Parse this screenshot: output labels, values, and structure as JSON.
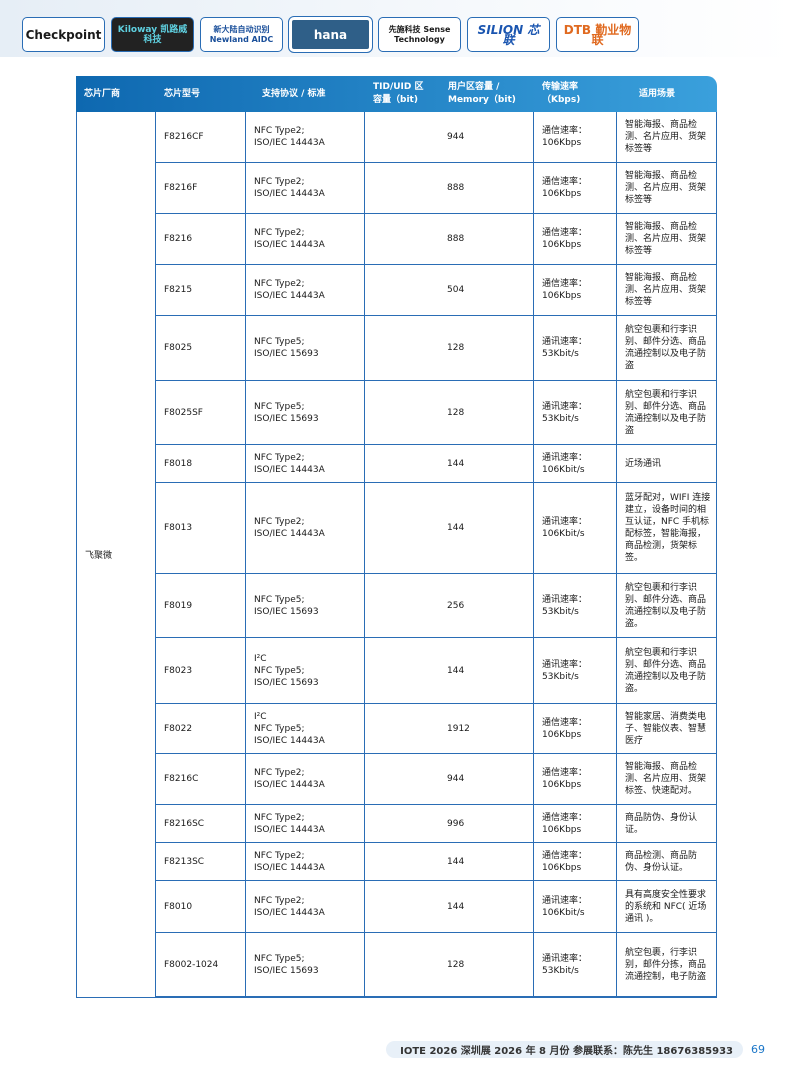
{
  "logos": [
    "Checkpoint",
    "Kiloway 凯路威科技",
    "新大陆自动识别 Newland AIDC",
    "hana",
    "先施科技 Sense Technology",
    "SILION 芯联",
    "DTB 勤业物联"
  ],
  "header": [
    "芯片厂商",
    "芯片型号",
    "支持协议 / 标准",
    "TID/UID 区\n容量（bit)",
    "用户区容量 /\nMemory（bit)",
    "传输速率\n（Kbps)",
    "适用场景"
  ],
  "vendor": "飞聚微",
  "rows": [
    {
      "model": "F8216CF",
      "protocol": "NFC Type2;\nISO/IEC 14443A",
      "memory": "944",
      "rate": "通信速率：\n106Kbps",
      "scenario": "智能海报、商品检测、名片应用、货架标签等"
    },
    {
      "model": "F8216F",
      "protocol": "NFC Type2;\nISO/IEC 14443A",
      "memory": "888",
      "rate": "通信速率：\n106Kbps",
      "scenario": "智能海报、商品检测、名片应用、货架标签等"
    },
    {
      "model": "F8216",
      "protocol": "NFC Type2;\nISO/IEC 14443A",
      "memory": "888",
      "rate": "通信速率：\n106Kbps",
      "scenario": "智能海报、商品检测、名片应用、货架标签等"
    },
    {
      "model": "F8215",
      "protocol": "NFC Type2;\nISO/IEC 14443A",
      "memory": "504",
      "rate": "通信速率：\n106Kbps",
      "scenario": "智能海报、商品检测、名片应用、货架标签等"
    },
    {
      "model": "F8025",
      "protocol": "NFC Type5;\nISO/IEC 15693",
      "memory": "128",
      "rate": "通讯速率：\n53Kbit/s",
      "scenario": "航空包裹和行李识别、邮件分选、商品流通控制以及电子防盗"
    },
    {
      "model": "F8025SF",
      "protocol": "NFC Type5;\nISO/IEC 15693",
      "memory": "128",
      "rate": "通讯速率：\n53Kbit/s",
      "scenario": "航空包裹和行李识别、邮件分选、商品流通控制以及电子防盗"
    },
    {
      "model": "F8018",
      "protocol": "NFC Type2;\nISO/IEC 14443A",
      "memory": "144",
      "rate": "通讯速率：\n106Kbit/s",
      "scenario": "近场通讯"
    },
    {
      "model": "F8013",
      "protocol": "NFC Type2;\nISO/IEC 14443A",
      "memory": "144",
      "rate": "通讯速率：\n106Kbit/s",
      "scenario": "蓝牙配对，WIFI 连接建立，设备时间的相互认证，NFC 手机标配标签，智能海报，商品检测，货架标签。"
    },
    {
      "model": "F8019",
      "protocol": "NFC Type5;\nISO/IEC 15693",
      "memory": "256",
      "rate": "通讯速率：\n53Kbit/s",
      "scenario": "航空包裹和行李识别、邮件分选、商品流通控制以及电子防盗。"
    },
    {
      "model": "F8023",
      "protocol": "I²C\nNFC Type5;\nISO/IEC 15693",
      "memory": "144",
      "rate": "通讯速率：\n53Kbit/s",
      "scenario": "航空包裹和行李识别、邮件分选、商品流通控制以及电子防盗。"
    },
    {
      "model": "F8022",
      "protocol": "I²C\nNFC Type5;\nISO/IEC 14443A",
      "memory": "1912",
      "rate": "通信速率：\n106Kbps",
      "scenario": "智能家居、消费类电子、智能仪表、智慧医疗"
    },
    {
      "model": "F8216C",
      "protocol": "NFC Type2;\nISO/IEC 14443A",
      "memory": "944",
      "rate": "通信速率：\n106Kbps",
      "scenario": "智能海报、商品检测、名片应用、货架标签、快速配对。"
    },
    {
      "model": "F8216SC",
      "protocol": "NFC Type2;\nISO/IEC 14443A",
      "memory": "996",
      "rate": "通信速率：\n106Kbps",
      "scenario": "商品防伪、身份认证。"
    },
    {
      "model": "F8213SC",
      "protocol": "NFC Type2;\nISO/IEC 14443A",
      "memory": "144",
      "rate": "通信速率：\n106Kbps",
      "scenario": "商品检测、商品防伪、身份认证。"
    },
    {
      "model": "F8010",
      "protocol": "NFC Type2;\nISO/IEC 14443A",
      "memory": "144",
      "rate": "通讯速率：\n106Kbit/s",
      "scenario": "具有高度安全性要求的系统和 NFC( 近场通讯 )。"
    },
    {
      "model": "F8002-1024",
      "protocol": "NFC Type5;\nISO/IEC 15693",
      "memory": "128",
      "rate": "通讯速率：\n53Kbit/s",
      "scenario": "航空包裹，行李识别，邮件分拣，商品流通控制，电子防盗"
    }
  ],
  "footer": {
    "text": "IOTE 2026 深圳展 2026 年 8 月份  参展联系：陈先生 18676385933",
    "page": "69"
  }
}
